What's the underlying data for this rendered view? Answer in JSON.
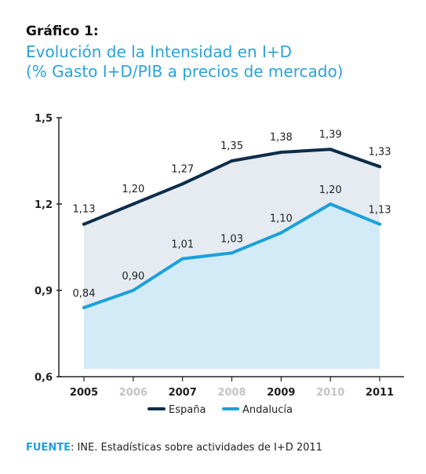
{
  "header": {
    "lead": "Gráfico 1:",
    "title_line1": "Evolución de la Intensidad en I+D",
    "title_line2": "(% Gasto I+D/PIB a precios de mercado)"
  },
  "source": {
    "label": "FUENTE",
    "text": ": INE. Estadísticas sobre actividades de I+D 2011"
  },
  "colors": {
    "espana": "#0d2d4a",
    "andalucia": "#1aa0db",
    "area_espana": "#e5ebf1",
    "area_andalucia": "#d2ebf7",
    "title": "#2aa3d9"
  },
  "chart_data": {
    "type": "area",
    "title": "Evolución de la Intensidad en I+D",
    "subtitle": "(% Gasto I+D/PIB a precios de mercado)",
    "x": [
      "2005",
      "2006",
      "2007",
      "2008",
      "2009",
      "2010",
      "2011"
    ],
    "x_highlighted": [
      true,
      false,
      true,
      false,
      true,
      false,
      true
    ],
    "ylim": [
      0.6,
      1.5
    ],
    "yticks": [
      "0,6",
      "0,9",
      "1,2",
      "1,5"
    ],
    "ytick_values": [
      0.6,
      0.9,
      1.2,
      1.5
    ],
    "grid": false,
    "legend": "bottom",
    "series": [
      {
        "name": "España",
        "values": [
          1.13,
          1.2,
          1.27,
          1.35,
          1.38,
          1.39,
          1.33
        ],
        "labels": [
          "1,13",
          "1,20",
          "1,27",
          "1,35",
          "1,38",
          "1,39",
          "1,33"
        ]
      },
      {
        "name": "Andalucía",
        "values": [
          0.84,
          0.9,
          1.01,
          1.03,
          1.1,
          1.2,
          1.13
        ],
        "labels": [
          "0,84",
          "0,90",
          "1,01",
          "1,03",
          "1,10",
          "1,20",
          "1,13"
        ]
      }
    ]
  }
}
